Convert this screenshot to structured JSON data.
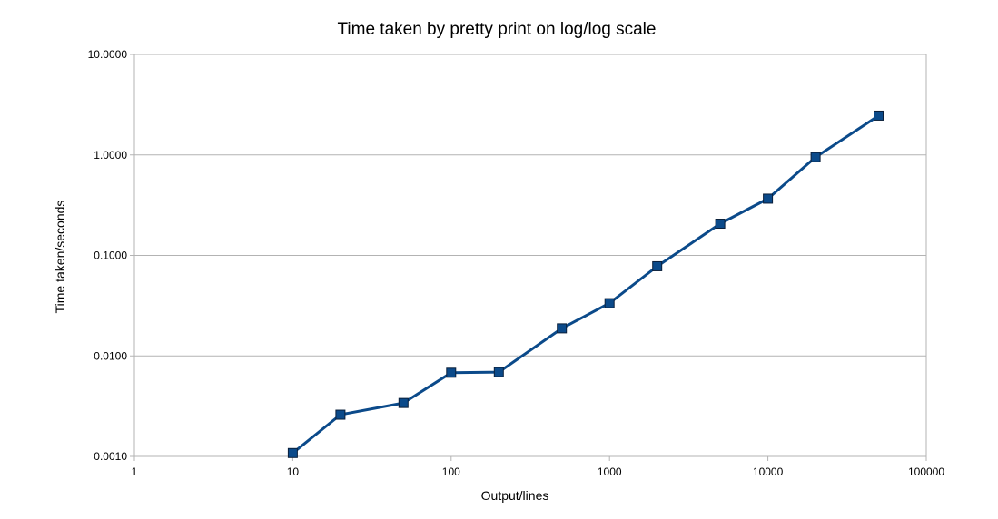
{
  "chart_data": {
    "type": "line",
    "title": "Time taken by pretty print on log/log scale",
    "xlabel": "Output/lines",
    "ylabel": "Time taken/seconds",
    "x_scale": "log",
    "y_scale": "log",
    "xlim": [
      1,
      100000
    ],
    "ylim": [
      0.001,
      10
    ],
    "x_ticks": [
      1,
      10,
      100,
      1000,
      10000,
      100000
    ],
    "x_tick_labels": [
      "1",
      "10",
      "100",
      "1000",
      "10000",
      "100000"
    ],
    "y_ticks": [
      0.001,
      0.01,
      0.1,
      1,
      10
    ],
    "y_tick_labels": [
      "0.0010",
      "0.0100",
      "0.1000",
      "1.0000",
      "10.0000"
    ],
    "grid": "horizontal",
    "legend": "none",
    "series": [
      {
        "color": "#0b4a8a",
        "marker": "square",
        "x": [
          10,
          20,
          50,
          100,
          200,
          500,
          1000,
          2000,
          5000,
          10000,
          20000,
          50000
        ],
        "y": [
          0.00108,
          0.0026,
          0.0034,
          0.0068,
          0.0069,
          0.0188,
          0.0335,
          0.078,
          0.207,
          0.367,
          0.95,
          2.46
        ]
      }
    ]
  }
}
